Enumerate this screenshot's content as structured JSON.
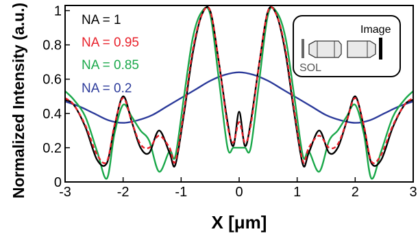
{
  "chart_data": {
    "type": "line",
    "xlabel": "X [μm]",
    "ylabel": "Normalized Intensity (a.u.)",
    "xlim": [
      -3,
      3
    ],
    "ylim": [
      0,
      1.03
    ],
    "xticks": [
      "-3",
      "-2",
      "-1",
      "0",
      "1",
      "2",
      "3"
    ],
    "yticks": [
      "0",
      "0.2",
      "0.4",
      "0.6",
      "0.8",
      "1"
    ],
    "grid": false,
    "legend": "top-left",
    "series": [
      {
        "name": "NA = 1",
        "color": "#000000",
        "dash": "solid",
        "x": [
          -3,
          -2.85,
          -2.65,
          -2.45,
          -2.28,
          -2.15,
          -2.0,
          -1.85,
          -1.7,
          -1.55,
          -1.38,
          -1.2,
          -1.1,
          -0.95,
          -0.8,
          -0.65,
          -0.5,
          -0.35,
          -0.2,
          -0.1,
          0,
          0.1,
          0.2,
          0.35,
          0.5,
          0.65,
          0.8,
          0.95,
          1.1,
          1.2,
          1.38,
          1.55,
          1.7,
          1.85,
          2.0,
          2.15,
          2.28,
          2.45,
          2.65,
          2.85,
          3
        ],
        "y": [
          0.48,
          0.45,
          0.32,
          0.13,
          0.11,
          0.32,
          0.5,
          0.35,
          0.2,
          0.17,
          0.3,
          0.17,
          0.1,
          0.4,
          0.75,
          0.97,
          1.0,
          0.7,
          0.35,
          0.21,
          0.41,
          0.21,
          0.35,
          0.7,
          1.0,
          0.97,
          0.75,
          0.4,
          0.1,
          0.17,
          0.3,
          0.17,
          0.2,
          0.35,
          0.5,
          0.32,
          0.11,
          0.13,
          0.32,
          0.45,
          0.48
        ]
      },
      {
        "name": "NA = 0.95",
        "color": "#e8202a",
        "dash": "dashed",
        "x": [
          -3,
          -2.85,
          -2.65,
          -2.45,
          -2.28,
          -2.15,
          -2.0,
          -1.85,
          -1.7,
          -1.55,
          -1.38,
          -1.2,
          -1.1,
          -0.95,
          -0.8,
          -0.65,
          -0.5,
          -0.35,
          -0.2,
          -0.1,
          0,
          0.1,
          0.2,
          0.35,
          0.5,
          0.65,
          0.8,
          0.95,
          1.1,
          1.2,
          1.38,
          1.55,
          1.7,
          1.85,
          2.0,
          2.15,
          2.28,
          2.45,
          2.65,
          2.85,
          3
        ],
        "y": [
          0.49,
          0.45,
          0.33,
          0.16,
          0.12,
          0.33,
          0.49,
          0.35,
          0.22,
          0.2,
          0.27,
          0.2,
          0.12,
          0.42,
          0.77,
          0.97,
          1.0,
          0.7,
          0.33,
          0.23,
          0.35,
          0.23,
          0.33,
          0.7,
          1.0,
          0.97,
          0.77,
          0.42,
          0.12,
          0.2,
          0.27,
          0.2,
          0.22,
          0.35,
          0.49,
          0.33,
          0.12,
          0.16,
          0.33,
          0.45,
          0.49
        ]
      },
      {
        "name": "NA = 0.85",
        "color": "#1aa84a",
        "dash": "solid",
        "x": [
          -3,
          -2.85,
          -2.65,
          -2.45,
          -2.28,
          -2.15,
          -2.0,
          -1.85,
          -1.7,
          -1.55,
          -1.38,
          -1.2,
          -1.1,
          -0.95,
          -0.8,
          -0.65,
          -0.5,
          -0.35,
          -0.2,
          -0.1,
          0,
          0.1,
          0.2,
          0.35,
          0.5,
          0.65,
          0.8,
          0.95,
          1.1,
          1.2,
          1.38,
          1.55,
          1.7,
          1.85,
          2.0,
          2.15,
          2.28,
          2.45,
          2.65,
          2.85,
          3
        ],
        "y": [
          0.53,
          0.48,
          0.38,
          0.18,
          0.02,
          0.28,
          0.45,
          0.38,
          0.3,
          0.24,
          0.06,
          0.18,
          0.15,
          0.5,
          0.84,
          0.99,
          0.98,
          0.6,
          0.2,
          0.2,
          0.2,
          0.2,
          0.2,
          0.6,
          0.98,
          0.99,
          0.84,
          0.5,
          0.15,
          0.18,
          0.06,
          0.24,
          0.3,
          0.38,
          0.45,
          0.28,
          0.02,
          0.18,
          0.38,
          0.48,
          0.53
        ]
      },
      {
        "name": "NA = 0.2",
        "color": "#2b3a9a",
        "dash": "solid",
        "x": [
          -3,
          -2.75,
          -2.5,
          -2.25,
          -2.0,
          -1.75,
          -1.5,
          -1.25,
          -1.0,
          -0.75,
          -0.5,
          -0.25,
          0,
          0.25,
          0.5,
          0.75,
          1.0,
          1.25,
          1.5,
          1.75,
          2.0,
          2.25,
          2.5,
          2.75,
          3
        ],
        "y": [
          0.47,
          0.44,
          0.4,
          0.36,
          0.345,
          0.36,
          0.39,
          0.44,
          0.49,
          0.54,
          0.59,
          0.625,
          0.64,
          0.625,
          0.59,
          0.54,
          0.49,
          0.44,
          0.39,
          0.36,
          0.345,
          0.36,
          0.4,
          0.44,
          0.47
        ]
      }
    ],
    "inset": {
      "title": "Image",
      "label": "SOL"
    }
  }
}
